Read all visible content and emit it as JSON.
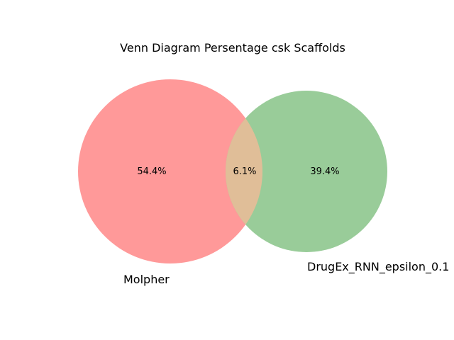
{
  "title": "Venn Diagram Persentage csk Scaffolds",
  "sets": [
    {
      "name": "Molpher",
      "share_label": "54.4%",
      "color": "#ff9999"
    },
    {
      "name": "DrugEx_RNN_epsilon_0.1",
      "share_label": "39.4%",
      "color": "#99cc99"
    }
  ],
  "overlap": {
    "share_label": "6.1%",
    "color": "#e0be98"
  }
}
